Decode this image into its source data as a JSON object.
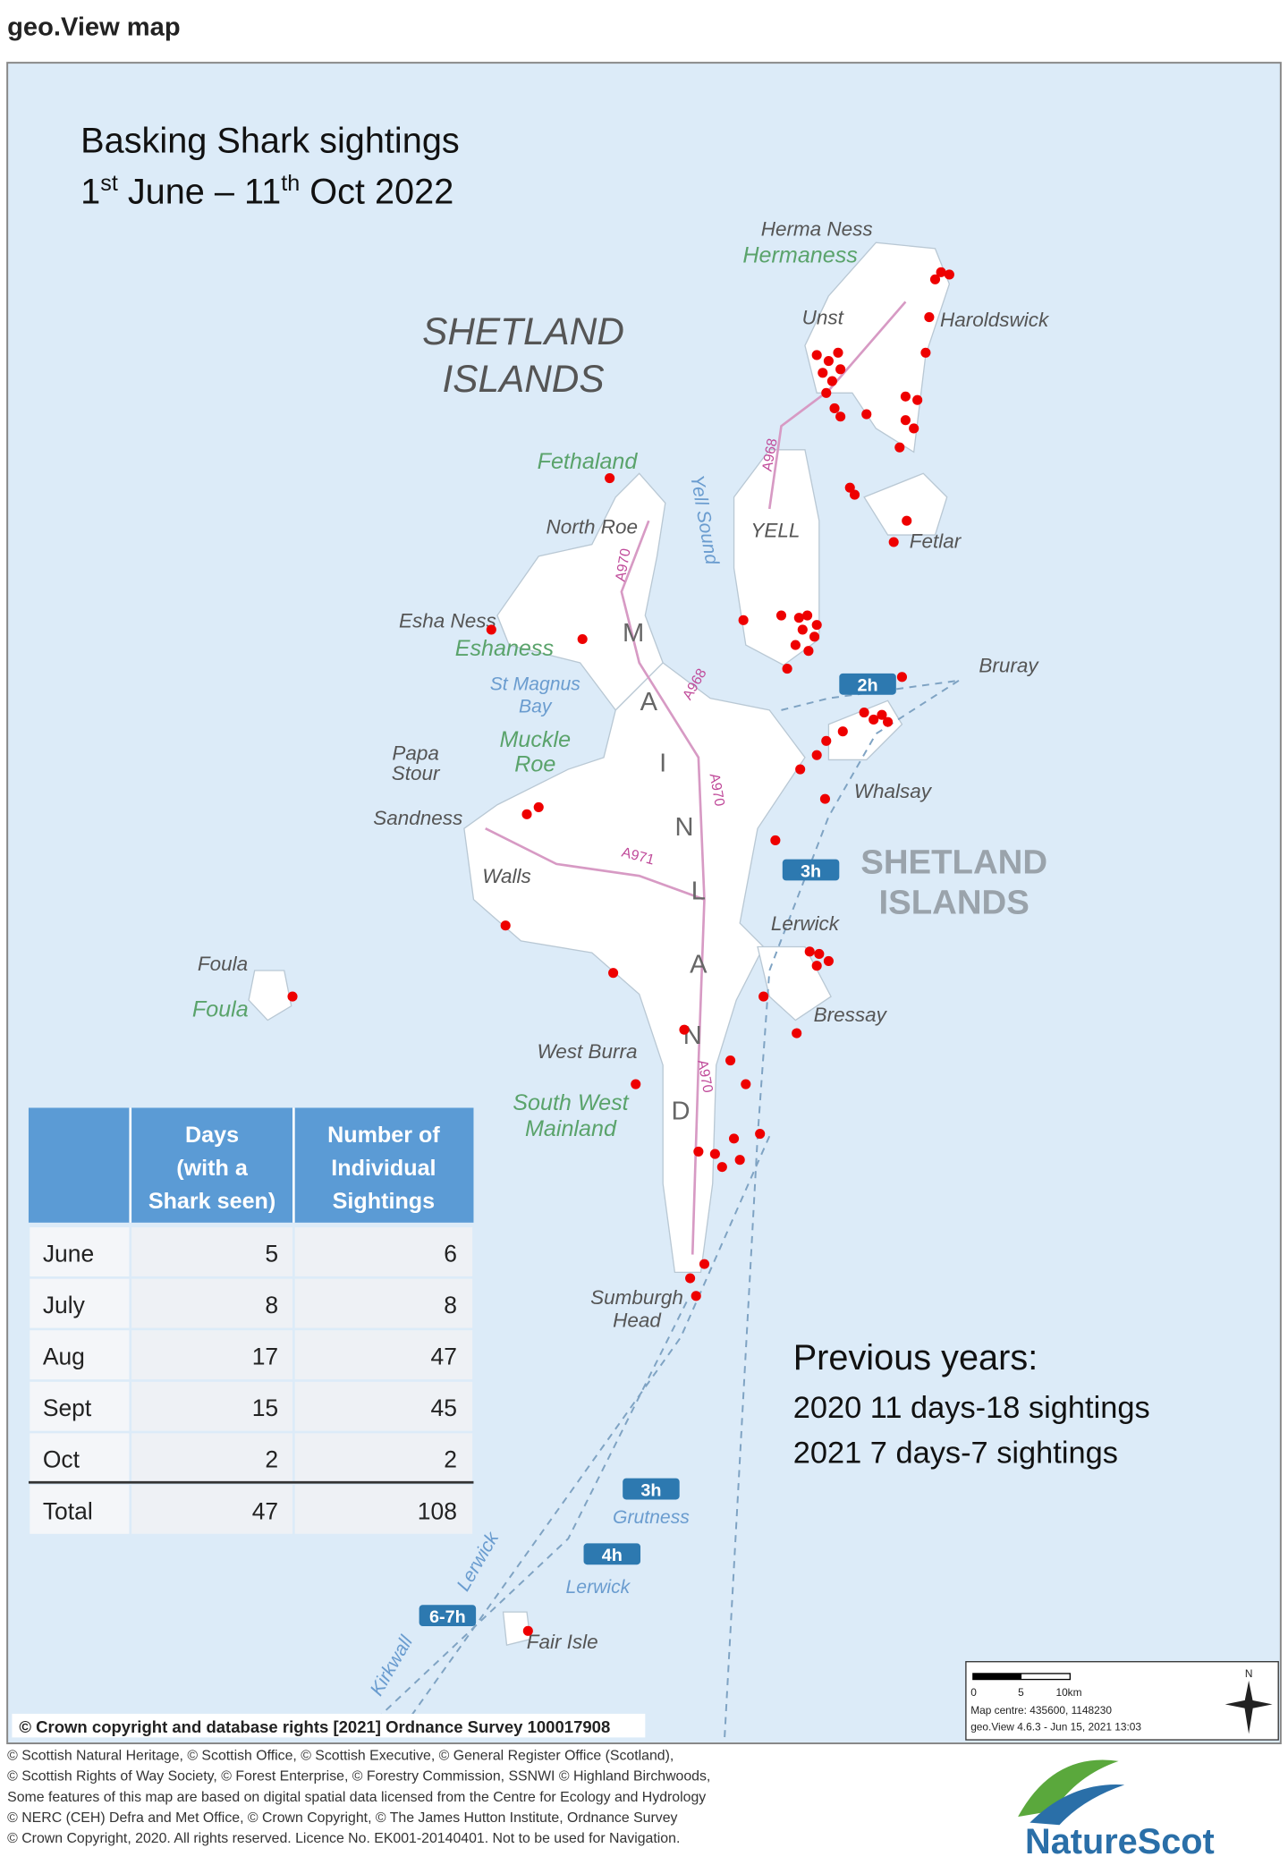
{
  "header": {
    "title": "geo.View map"
  },
  "map": {
    "title_line1": "Basking Shark sightings",
    "title_line2": [
      "1",
      "st",
      " June – 11",
      "th",
      " Oct 2022"
    ],
    "labels": [
      "Herma Ness",
      "Hermaness",
      "Unst",
      "Haroldswick",
      "SHETLAND",
      "ISLANDS",
      "Fethaland",
      "North Roe",
      "YELL",
      "Fetlar",
      "Yell Sound",
      "Esha Ness",
      "Eshaness",
      "St Magnus",
      "Bay",
      "Muckle",
      "Roe",
      "Papa",
      "Stour",
      "Sandness",
      "Walls",
      "Bruray",
      "Whalsay",
      "SHETLAND",
      "ISLANDS",
      "Lerwick",
      "Bressay",
      "Foula",
      "Foula",
      "West Burra",
      "South West",
      "Mainland",
      "Sumburgh",
      "Head",
      "Grutness",
      "Lerwick",
      "Fair Isle",
      "Kirkwall",
      "Lerwick"
    ],
    "mainland_letters": [
      "M",
      "A",
      "I",
      "N",
      "L",
      "A",
      "N",
      "D"
    ],
    "roads": [
      "A968",
      "A970",
      "A968",
      "A970",
      "A971",
      "A970"
    ],
    "ferries": [
      "2h",
      "3h",
      "3h",
      "4h",
      "6-7h"
    ],
    "scale": {
      "ticks": [
        "0",
        "5",
        "10km"
      ],
      "centre": "Map centre: 435600, 1148230",
      "version": "geo.View 4.6.3 - Jun 15, 2021 13:03",
      "north": "N"
    },
    "crown": "© Crown copyright and database rights [2021] Ordnance Survey 100017908"
  },
  "table": {
    "header": [
      [
        "Days",
        "(with a",
        "Shark seen)"
      ],
      [
        "Number of",
        "Individual",
        "Sightings"
      ]
    ],
    "rows": [
      [
        "June",
        5,
        6
      ],
      [
        "July",
        8,
        8
      ],
      [
        "Aug",
        17,
        47
      ],
      [
        "Sept",
        15,
        45
      ],
      [
        "Oct",
        2,
        2
      ],
      [
        "Total",
        47,
        108
      ]
    ]
  },
  "previous": {
    "title": "Previous years:",
    "lines": [
      "2020 11 days-18 sightings",
      "2021 7 days-7 sightings"
    ]
  },
  "footer": {
    "lines": [
      "© Scottish Natural Heritage, © Scottish Office, © Scottish Executive, © General Register Office (Scotland),",
      "© Scottish Rights of Way Society, © Forest Enterprise, © Forestry Commission, SSNWI © Highland Birchwoods,",
      "Some features of this map are based on digital spatial data licensed from the Centre for Ecology and Hydrology",
      "© NERC (CEH) Defra and Met Office, © Crown Copyright, © The James Hutton Institute, Ordnance Survey",
      "© Crown Copyright, 2020. All rights reserved. Licence No. EK001-20140401. Not to be used for Navigation."
    ],
    "logo": "NatureScot"
  }
}
